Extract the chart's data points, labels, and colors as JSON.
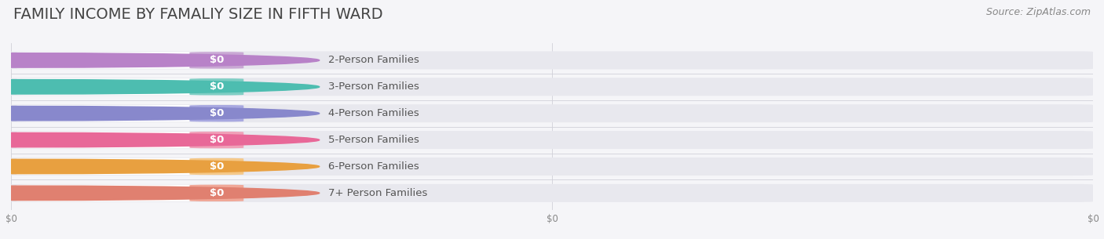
{
  "title": "FAMILY INCOME BY FAMALIY SIZE IN FIFTH WARD",
  "source": "Source: ZipAtlas.com",
  "categories": [
    "2-Person Families",
    "3-Person Families",
    "4-Person Families",
    "5-Person Families",
    "6-Person Families",
    "7+ Person Families"
  ],
  "values": [
    0,
    0,
    0,
    0,
    0,
    0
  ],
  "bar_colors": [
    "#c9a8d4",
    "#7ecec4",
    "#a8a8e0",
    "#f0a0b8",
    "#f5c888",
    "#f0a898"
  ],
  "dot_colors": [
    "#b882c8",
    "#4dbdb0",
    "#8888cc",
    "#e86898",
    "#e8a040",
    "#e08070"
  ],
  "bg_color": "#f5f5f8",
  "bar_bg_color": "#e8e8ee",
  "white_pill_color": "#ffffff",
  "label_color": "#555555",
  "value_label_color": "#ffffff",
  "title_color": "#444444",
  "source_color": "#888888",
  "bar_height": 0.68,
  "title_fontsize": 14,
  "label_fontsize": 9.5,
  "value_fontsize": 9.5,
  "source_fontsize": 9
}
